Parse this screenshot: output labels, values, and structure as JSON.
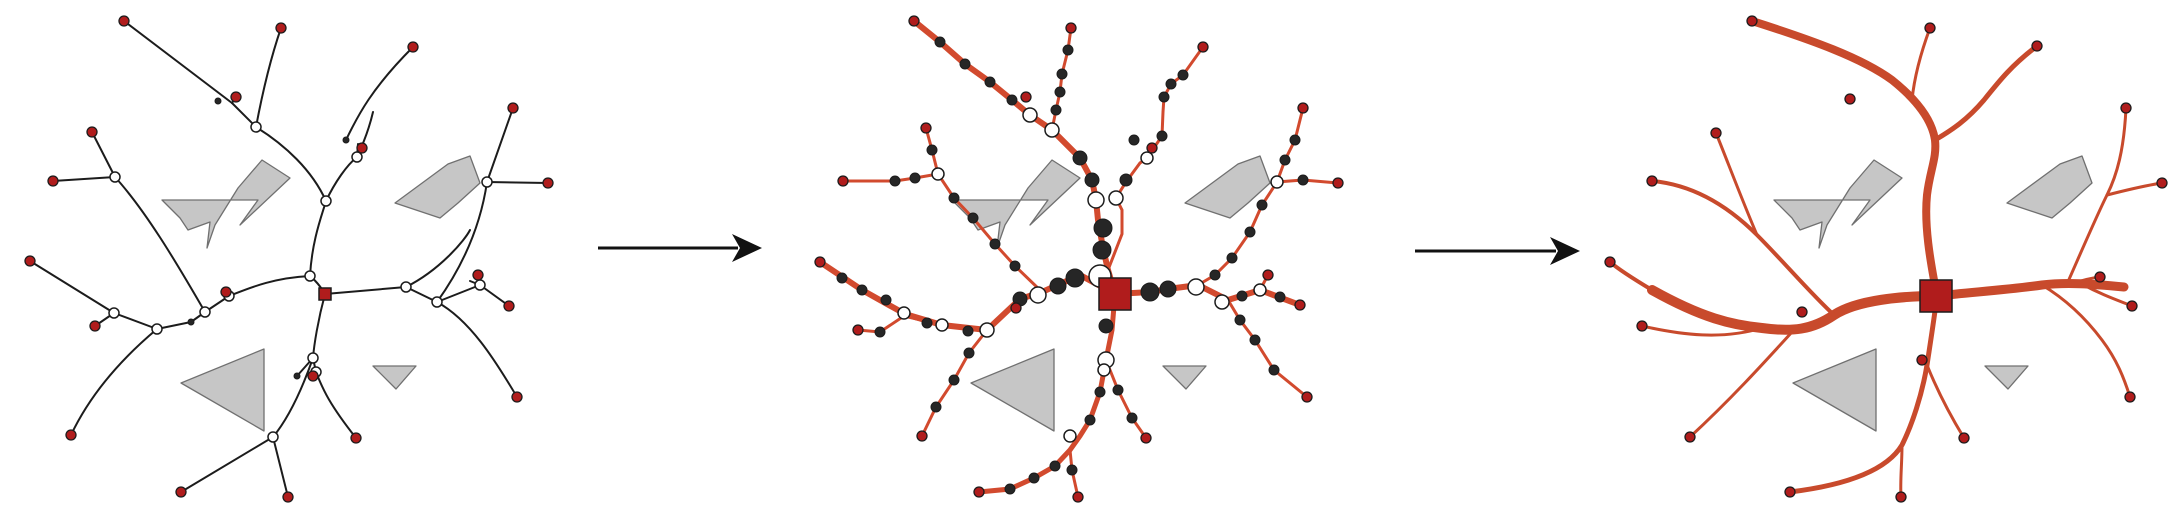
{
  "figure": {
    "panels": [
      "input-steiner-tree",
      "subdivided-tree",
      "smooth-flow-map"
    ],
    "arrow_count": 2
  },
  "colors": {
    "terminal": "#b01c1c",
    "root": "#b01c1c",
    "flow": "#d24a2e",
    "obstacle": "#c6c6c6",
    "edge": "#1c1c1c",
    "arrow": "#111111"
  }
}
